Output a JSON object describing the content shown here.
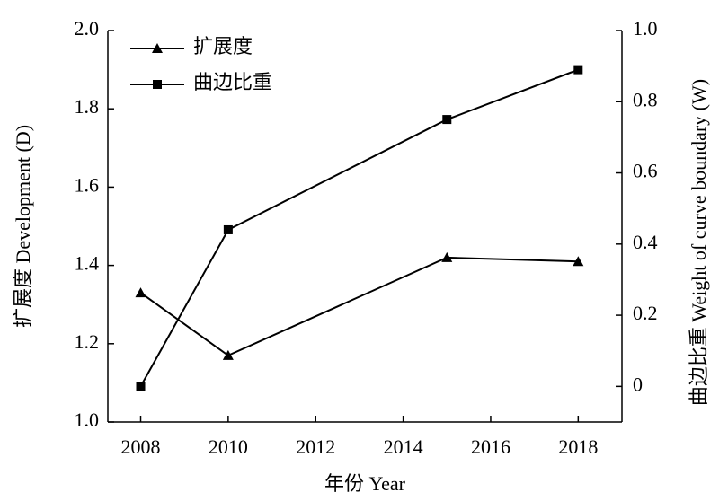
{
  "chart_data": {
    "type": "line",
    "x": [
      2008,
      2010,
      2015,
      2018
    ],
    "xlim": [
      2007.25,
      2019
    ],
    "xticks": [
      2008,
      2010,
      2012,
      2014,
      2016,
      2018
    ],
    "xlabel": "年份 Year",
    "ylabel": "扩展度 Development (D)",
    "y2label": "曲边比重 Weight of curve boundary (W)",
    "ylim": [
      1.0,
      2.0
    ],
    "yticks": [
      {
        "value": 1.0,
        "label": "1.0"
      },
      1.2,
      1.4,
      1.6,
      1.8,
      {
        "value": 2.0,
        "label": "2.0"
      }
    ],
    "y2lim": [
      -0.1,
      1.0
    ],
    "y2ticks": [
      0,
      0.2,
      0.4,
      0.6,
      0.8,
      {
        "value": 1.0,
        "label": "1.0"
      }
    ],
    "legend": "upper left",
    "series": [
      {
        "name": "扩展度",
        "color": "#000000",
        "marker": "triangle",
        "values": [
          1.33,
          1.17,
          1.42,
          1.41
        ]
      },
      {
        "name": "曲边比重",
        "color": "#000000",
        "marker": "square",
        "axis": "y2",
        "values": [
          0,
          0.44,
          0.75,
          0.89
        ]
      }
    ]
  }
}
